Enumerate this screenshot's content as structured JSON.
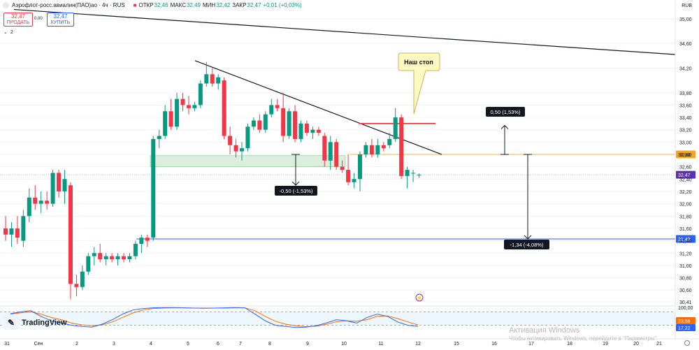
{
  "header": {
    "instrument": "Аэрофлот-росс.авиалин(ПАО)ао · 4ч · RUS",
    "open_label": "ОТКР",
    "open": "32,46",
    "high_label": "МАКС",
    "high": "32,49",
    "low_label": "МИН",
    "low": "32,42",
    "close_label": "ЗАКР",
    "close": "32,47",
    "change": "+0,01 (+0,03%)"
  },
  "trade": {
    "sell_price": "32,47",
    "sell_label": "ПРОДАТЬ",
    "spread": "0,00",
    "buy_price": "32,47",
    "buy_label": "КУПИТЬ",
    "indicator_count": "2"
  },
  "currency": "RUB",
  "logo_text": "TradingView",
  "watermark": {
    "line1": "Активация Windows",
    "line2": "Чтобы активировать Windows, перейдите в \"Параметры\"."
  },
  "colors": {
    "up": "#089981",
    "down": "#f23645",
    "orange_level": "#f5b041",
    "blue_level": "#2962ff",
    "current_price": "#5b2fb8",
    "stoch_k": "#2962ff",
    "stoch_d": "#ff6d00"
  },
  "chart_data": {
    "type": "candlestick",
    "timeframe": "4ч",
    "y_range": [
      30.41,
      35.1
    ],
    "price_axis_ticks": [
      "35,00",
      "34,60",
      "34,20",
      "33,80",
      "33,60",
      "33,40",
      "33,20",
      "33,00",
      "32,80",
      "32,60",
      "32,40",
      "32,20",
      "32,00",
      "31,80",
      "31,60",
      "31,40",
      "31,20",
      "31,00",
      "30,80",
      "30,60",
      "30,41"
    ],
    "x_axis_labels": [
      "31",
      "Сен",
      "2",
      "3",
      "4",
      "5",
      "6",
      "7",
      "8",
      "9",
      "10",
      "11",
      "12",
      "15",
      "16",
      "17",
      "18",
      "19",
      "20",
      "21"
    ],
    "candles": [
      {
        "o": 31.6,
        "h": 31.8,
        "l": 31.4,
        "c": 31.5
      },
      {
        "o": 31.5,
        "h": 31.7,
        "l": 31.3,
        "c": 31.6
      },
      {
        "o": 31.6,
        "h": 31.8,
        "l": 31.35,
        "c": 31.45
      },
      {
        "o": 31.4,
        "h": 31.9,
        "l": 31.3,
        "c": 31.8
      },
      {
        "o": 31.8,
        "h": 32.25,
        "l": 31.7,
        "c": 32.1
      },
      {
        "o": 32.1,
        "h": 32.3,
        "l": 31.9,
        "c": 32.0
      },
      {
        "o": 32.0,
        "h": 32.2,
        "l": 31.85,
        "c": 32.05
      },
      {
        "o": 32.05,
        "h": 32.2,
        "l": 31.9,
        "c": 32.0
      },
      {
        "o": 32.0,
        "h": 32.55,
        "l": 31.95,
        "c": 32.5
      },
      {
        "o": 32.5,
        "h": 32.55,
        "l": 32.1,
        "c": 32.2
      },
      {
        "o": 32.2,
        "h": 32.55,
        "l": 32.0,
        "c": 32.4
      },
      {
        "o": 32.3,
        "h": 32.35,
        "l": 30.45,
        "c": 30.7
      },
      {
        "o": 30.7,
        "h": 30.85,
        "l": 30.5,
        "c": 30.65
      },
      {
        "o": 30.65,
        "h": 31.0,
        "l": 30.6,
        "c": 30.9
      },
      {
        "o": 30.9,
        "h": 31.2,
        "l": 30.85,
        "c": 31.15
      },
      {
        "o": 31.15,
        "h": 31.3,
        "l": 31.0,
        "c": 31.2
      },
      {
        "o": 31.2,
        "h": 31.35,
        "l": 31.05,
        "c": 31.1
      },
      {
        "o": 31.1,
        "h": 31.2,
        "l": 31.0,
        "c": 31.15
      },
      {
        "o": 31.15,
        "h": 31.2,
        "l": 31.05,
        "c": 31.1
      },
      {
        "o": 31.1,
        "h": 31.2,
        "l": 31.0,
        "c": 31.15
      },
      {
        "o": 31.15,
        "h": 31.2,
        "l": 31.05,
        "c": 31.1
      },
      {
        "o": 31.1,
        "h": 31.2,
        "l": 31.05,
        "c": 31.15
      },
      {
        "o": 31.15,
        "h": 31.4,
        "l": 31.1,
        "c": 31.35
      },
      {
        "o": 31.35,
        "h": 31.5,
        "l": 31.2,
        "c": 31.45
      },
      {
        "o": 31.45,
        "h": 31.5,
        "l": 31.3,
        "c": 31.4
      },
      {
        "o": 31.45,
        "h": 33.1,
        "l": 31.4,
        "c": 33.05
      },
      {
        "o": 33.05,
        "h": 33.2,
        "l": 32.9,
        "c": 33.1
      },
      {
        "o": 33.1,
        "h": 33.6,
        "l": 33.05,
        "c": 33.5
      },
      {
        "o": 33.5,
        "h": 33.7,
        "l": 33.2,
        "c": 33.25
      },
      {
        "o": 33.25,
        "h": 33.8,
        "l": 33.2,
        "c": 33.7
      },
      {
        "o": 33.7,
        "h": 33.8,
        "l": 33.5,
        "c": 33.6
      },
      {
        "o": 33.6,
        "h": 33.75,
        "l": 33.45,
        "c": 33.55
      },
      {
        "o": 33.55,
        "h": 33.65,
        "l": 33.5,
        "c": 33.6
      },
      {
        "o": 33.6,
        "h": 34.0,
        "l": 33.55,
        "c": 33.95
      },
      {
        "o": 33.95,
        "h": 34.3,
        "l": 33.9,
        "c": 34.1
      },
      {
        "o": 34.1,
        "h": 34.2,
        "l": 33.9,
        "c": 33.95
      },
      {
        "o": 33.95,
        "h": 34.1,
        "l": 33.85,
        "c": 34.05
      },
      {
        "o": 34.0,
        "h": 34.05,
        "l": 33.05,
        "c": 33.1
      },
      {
        "o": 33.1,
        "h": 33.25,
        "l": 32.8,
        "c": 32.95
      },
      {
        "o": 32.95,
        "h": 33.05,
        "l": 32.75,
        "c": 32.85
      },
      {
        "o": 32.85,
        "h": 33.0,
        "l": 32.7,
        "c": 32.9
      },
      {
        "o": 32.9,
        "h": 33.3,
        "l": 32.85,
        "c": 33.25
      },
      {
        "o": 33.25,
        "h": 33.4,
        "l": 33.2,
        "c": 33.35
      },
      {
        "o": 33.35,
        "h": 33.45,
        "l": 33.15,
        "c": 33.2
      },
      {
        "o": 33.2,
        "h": 33.5,
        "l": 33.15,
        "c": 33.45
      },
      {
        "o": 33.45,
        "h": 33.7,
        "l": 33.4,
        "c": 33.6
      },
      {
        "o": 33.6,
        "h": 33.7,
        "l": 33.5,
        "c": 33.55
      },
      {
        "o": 33.55,
        "h": 33.8,
        "l": 33.0,
        "c": 33.1
      },
      {
        "o": 33.1,
        "h": 33.55,
        "l": 33.05,
        "c": 33.5
      },
      {
        "o": 33.5,
        "h": 33.6,
        "l": 33.0,
        "c": 33.05
      },
      {
        "o": 33.05,
        "h": 33.35,
        "l": 33.0,
        "c": 33.3
      },
      {
        "o": 33.3,
        "h": 33.35,
        "l": 33.1,
        "c": 33.15
      },
      {
        "o": 33.15,
        "h": 33.25,
        "l": 33.05,
        "c": 33.2
      },
      {
        "o": 33.2,
        "h": 33.25,
        "l": 33.1,
        "c": 33.15
      },
      {
        "o": 33.1,
        "h": 33.15,
        "l": 32.6,
        "c": 32.7
      },
      {
        "o": 32.7,
        "h": 33.1,
        "l": 32.55,
        "c": 33.0
      },
      {
        "o": 33.0,
        "h": 33.05,
        "l": 32.55,
        "c": 32.6
      },
      {
        "o": 32.6,
        "h": 32.7,
        "l": 32.5,
        "c": 32.55
      },
      {
        "o": 32.55,
        "h": 32.8,
        "l": 32.3,
        "c": 32.35
      },
      {
        "o": 32.35,
        "h": 32.5,
        "l": 32.25,
        "c": 32.4
      },
      {
        "o": 32.4,
        "h": 32.85,
        "l": 32.2,
        "c": 32.8
      },
      {
        "o": 32.8,
        "h": 33.0,
        "l": 32.75,
        "c": 32.95
      },
      {
        "o": 32.95,
        "h": 33.05,
        "l": 32.75,
        "c": 32.8
      },
      {
        "o": 32.8,
        "h": 33.05,
        "l": 32.75,
        "c": 32.95
      },
      {
        "o": 32.95,
        "h": 33.0,
        "l": 32.85,
        "c": 32.9
      },
      {
        "o": 32.95,
        "h": 33.15,
        "l": 32.9,
        "c": 33.05
      },
      {
        "o": 33.05,
        "h": 33.55,
        "l": 33.0,
        "c": 33.4
      },
      {
        "o": 33.4,
        "h": 33.45,
        "l": 32.4,
        "c": 32.45
      },
      {
        "o": 32.45,
        "h": 32.6,
        "l": 32.25,
        "c": 32.55
      },
      {
        "o": 32.5,
        "h": 32.55,
        "l": 32.35,
        "c": 32.5
      },
      {
        "o": 32.46,
        "h": 32.49,
        "l": 32.42,
        "c": 32.47
      }
    ],
    "levels": [
      {
        "price": 32.8,
        "label": "32,80",
        "color": "#f5b041"
      },
      {
        "price": 32.47,
        "label": "32,47",
        "color": "#5b2fb8"
      },
      {
        "price": 31.43,
        "label": "31,43",
        "color": "#2962ff"
      }
    ],
    "measures": [
      {
        "label": "0,50 (1,53%)"
      },
      {
        "label": "-0,50 (-1,53%)"
      },
      {
        "label": "-1,34 (-4,08%)"
      }
    ],
    "callout": "Наш стоп",
    "stochastic": {
      "ticks": [
        "100,00",
        "23,58",
        "17,22"
      ],
      "k": [
        72,
        80,
        85,
        60,
        40,
        30,
        20,
        15,
        12,
        25,
        45,
        70,
        88,
        95,
        98,
        99,
        99,
        98,
        97,
        96,
        97,
        98,
        99,
        98,
        70,
        40,
        20,
        15,
        10,
        12,
        18,
        30,
        45,
        40,
        30,
        55,
        70,
        60,
        35,
        20,
        15
      ],
      "d": [
        70,
        76,
        80,
        70,
        55,
        45,
        30,
        22,
        18,
        22,
        35,
        55,
        75,
        88,
        95,
        97,
        98,
        98,
        97,
        97,
        97,
        97,
        98,
        98,
        85,
        60,
        38,
        25,
        18,
        14,
        16,
        24,
        36,
        40,
        38,
        45,
        60,
        62,
        50,
        35,
        22
      ]
    }
  }
}
